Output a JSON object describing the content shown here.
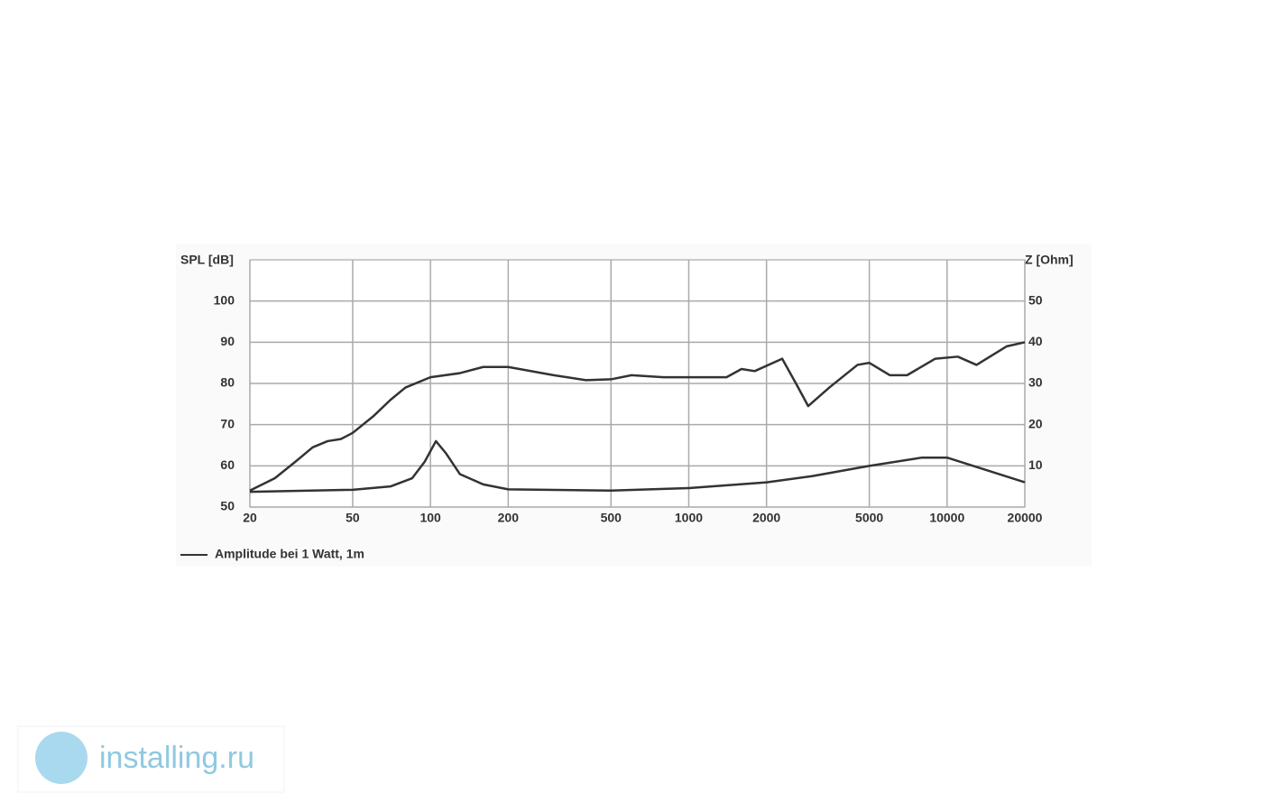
{
  "chart_data": {
    "type": "line",
    "y_label": "SPL [dB]",
    "y2_label": "Z [Ohm]",
    "xscale": "log",
    "xlim": [
      20,
      20000
    ],
    "xticks": [
      20,
      50,
      100,
      200,
      500,
      1000,
      2000,
      5000,
      10000,
      20000
    ],
    "ylim": [
      50,
      110
    ],
    "yticks": [
      50,
      60,
      70,
      80,
      90,
      100
    ],
    "y2lim": [
      0,
      60
    ],
    "y2ticks": [
      10,
      20,
      30,
      40,
      50
    ],
    "grid": true,
    "series": [
      {
        "name": "Amplitude bei 1 Watt, 1m",
        "color": "#333333",
        "x": [
          20,
          25,
          30,
          35,
          40,
          45,
          50,
          60,
          70,
          80,
          100,
          130,
          160,
          200,
          300,
          400,
          500,
          600,
          800,
          1000,
          1400,
          1600,
          1800,
          2300,
          2600,
          2900,
          3500,
          4500,
          5000,
          6000,
          7000,
          9000,
          11000,
          13000,
          17000,
          20000
        ],
        "values": [
          54,
          57,
          61,
          64.5,
          66,
          66.5,
          68,
          72,
          76,
          79,
          81.5,
          82.5,
          84,
          84,
          82,
          80.8,
          81,
          82,
          81.5,
          81.5,
          81.5,
          83.5,
          83,
          86,
          80,
          74.5,
          79,
          84.5,
          85,
          82,
          82,
          86,
          86.5,
          84.5,
          89,
          90
        ]
      },
      {
        "color": "#333333",
        "axis": "y2",
        "x": [
          20,
          50,
          70,
          85,
          95,
          105,
          115,
          130,
          160,
          200,
          500,
          1000,
          2000,
          3000,
          5000,
          8000,
          10000,
          20000
        ],
        "values": [
          3.7,
          4.2,
          5,
          7,
          11,
          16,
          13,
          8,
          5.5,
          4.3,
          4,
          4.6,
          6,
          7.5,
          10,
          12,
          12,
          6
        ]
      }
    ]
  },
  "watermark": "installing.ru"
}
